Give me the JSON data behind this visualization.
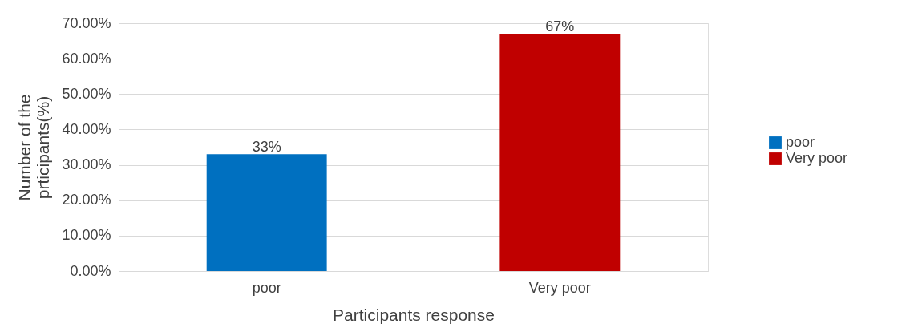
{
  "chart_data": {
    "type": "bar",
    "categories": [
      "poor",
      "Very poor"
    ],
    "series": [
      {
        "name": "poor",
        "color": "#0070c0",
        "values": [
          33,
          null
        ],
        "value_labels": [
          "33%",
          null
        ]
      },
      {
        "name": "Very poor",
        "color": "#c00000",
        "values": [
          null,
          67
        ],
        "value_labels": [
          null,
          "67%"
        ]
      }
    ],
    "xlabel": "Participants response",
    "ylabel": "Number of the prticipants(%)",
    "ylim": [
      0,
      70
    ],
    "yticks": [
      {
        "value": 0,
        "label": "0.00%"
      },
      {
        "value": 10,
        "label": "10.00%"
      },
      {
        "value": 20,
        "label": "20.00%"
      },
      {
        "value": 30,
        "label": "30.00%"
      },
      {
        "value": 40,
        "label": "40.00%"
      },
      {
        "value": 50,
        "label": "50.00%"
      },
      {
        "value": 60,
        "label": "60.00%"
      },
      {
        "value": 70,
        "label": "70.00%"
      }
    ],
    "grid": "y",
    "legend": "right"
  }
}
